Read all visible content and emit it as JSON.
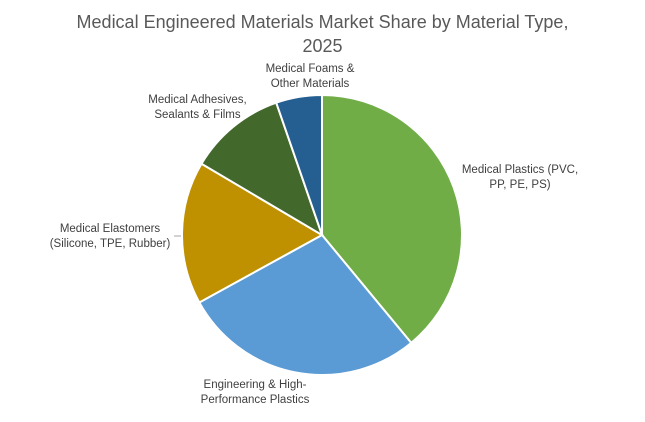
{
  "chart_data": {
    "type": "pie",
    "title": "Medical Engineered Materials Market Share by Material Type, 2025",
    "categories": [
      "Medical Plastics (PVC, PP, PE, PS)",
      "Engineering & High-Performance Plastics",
      "Medical Elastomers (Silicone, TPE, Rubber)",
      "Medical Adhesives, Sealants & Films",
      "Medical Foams & Other Materials"
    ],
    "values": [
      39,
      28,
      16.5,
      11.2,
      5.3
    ],
    "colors": [
      "#70ad47",
      "#5b9bd5",
      "#bf9000",
      "#43682b",
      "#255e91"
    ]
  }
}
